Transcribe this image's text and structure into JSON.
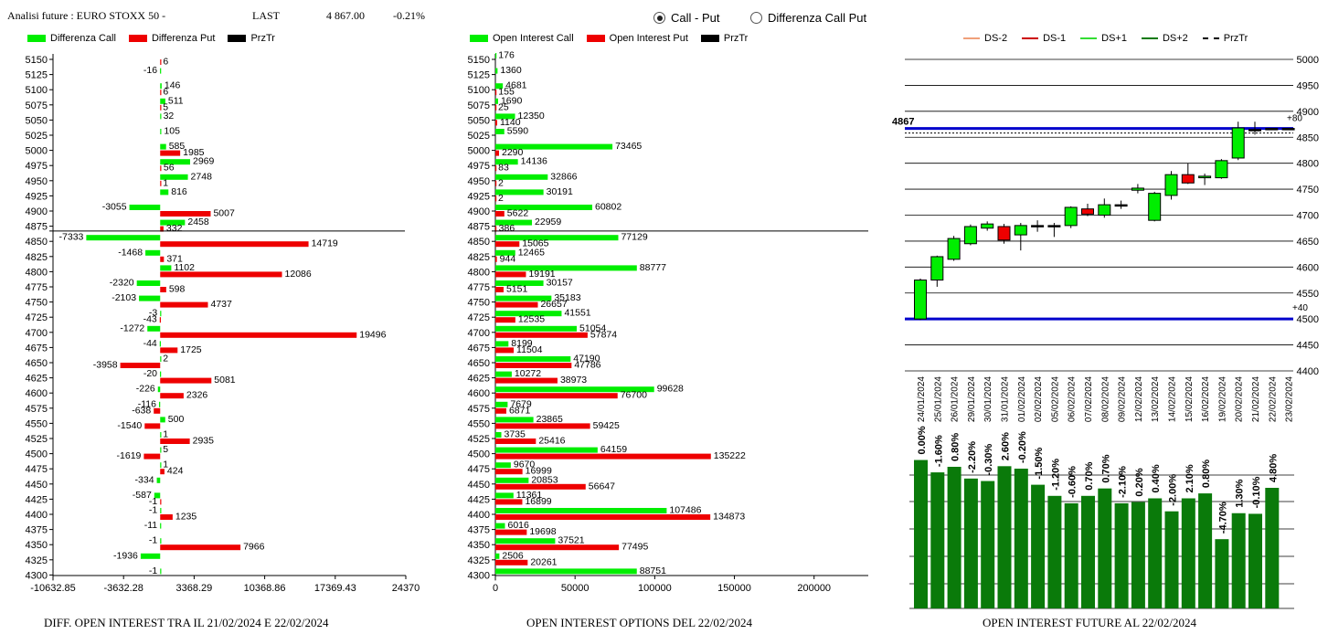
{
  "header": {
    "title": "Analisi future : EURO STOXX 50 -",
    "last_label": "LAST",
    "last_value": "4 867.00",
    "change": "-0.21%"
  },
  "radio": {
    "call_put": "Call - Put",
    "diff_call_put": "Differenza Call Put",
    "selected": "call_put"
  },
  "colors": {
    "green": "#00ee00",
    "red": "#ee0000",
    "black": "#000000",
    "blue": "#0000cc",
    "darkgreen": "#0a7a0a"
  },
  "panel1": {
    "legend": [
      "Differenza Call",
      "Differenza Put",
      "PrzTr"
    ],
    "caption": "DIFF. OPEN INTEREST TRA IL 21/02/2024 E 22/02/2024"
  },
  "panel2": {
    "legend": [
      "Open Interest Call",
      "Open Interest Put",
      "PrzTr"
    ],
    "caption": "OPEN INTEREST OPTIONS DEL 22/02/2024"
  },
  "panel3": {
    "legend": [
      "DS-2",
      "DS-1",
      "DS+1",
      "DS+2",
      "PrzTr"
    ],
    "caption": "OPEN INTEREST FUTURE AL 22/02/2024"
  },
  "chart_data": [
    {
      "type": "bar",
      "orientation": "horizontal",
      "strikes": [
        "5150",
        "5125",
        "5100",
        "5075",
        "5050",
        "5025",
        "5000",
        "4975",
        "4950",
        "4925",
        "4900",
        "4875",
        "4850",
        "4825",
        "4800",
        "4775",
        "4750",
        "4725",
        "4700",
        "4675",
        "4650",
        "4625",
        "4600",
        "4575",
        "4550",
        "4525",
        "4500",
        "4475",
        "4450",
        "4425",
        "4400",
        "4375",
        "4350",
        "4325",
        "4300"
      ],
      "series": [
        {
          "name": "Differenza Call",
          "values": [
            0,
            -16,
            146,
            511,
            32,
            105,
            585,
            2969,
            2748,
            816,
            -3055,
            2458,
            -7333,
            -1468,
            1102,
            -2320,
            -2103,
            -3,
            -1272,
            -44,
            2,
            -20,
            -226,
            -116,
            500,
            1,
            5,
            1,
            -334,
            -587,
            -1,
            -11,
            -1,
            -1936,
            -1
          ]
        },
        {
          "name": "Differenza Put",
          "values": [
            6,
            0,
            6,
            5,
            0,
            0,
            1985,
            56,
            1,
            0,
            5007,
            332,
            14719,
            371,
            12086,
            598,
            4737,
            -43,
            19496,
            1725,
            -3958,
            5081,
            2326,
            -638,
            -1540,
            2935,
            -1619,
            424,
            0,
            -1,
            1235,
            0,
            7966,
            0,
            0
          ]
        }
      ],
      "przTr": 4867,
      "xticks": [
        "-10632.85",
        "-3632.28",
        "3368.29",
        "10368.86",
        "17369.43",
        "24370"
      ],
      "xlim": [
        -10632.85,
        24370
      ]
    },
    {
      "type": "bar",
      "orientation": "horizontal",
      "strikes": [
        "5150",
        "5125",
        "5100",
        "5075",
        "5050",
        "5025",
        "5000",
        "4975",
        "4950",
        "4925",
        "4900",
        "4875",
        "4850",
        "4825",
        "4800",
        "4775",
        "4750",
        "4725",
        "4700",
        "4675",
        "4650",
        "4625",
        "4600",
        "4575",
        "4550",
        "4525",
        "4500",
        "4475",
        "4450",
        "4425",
        "4400",
        "4375",
        "4350",
        "4325",
        "4300"
      ],
      "series": [
        {
          "name": "Open Interest Call",
          "values": [
            176,
            1360,
            4681,
            1690,
            12350,
            5590,
            73465,
            14136,
            32866,
            30191,
            60802,
            22959,
            77129,
            12465,
            88777,
            30157,
            35183,
            41551,
            51054,
            8199,
            47190,
            10272,
            99628,
            7679,
            23865,
            3735,
            64159,
            9670,
            20853,
            11361,
            107486,
            6016,
            37521,
            2506,
            88751
          ]
        },
        {
          "name": "Open Interest Put",
          "values": [
            0,
            0,
            155,
            25,
            1140,
            0,
            2290,
            83,
            2,
            2,
            5622,
            386,
            15065,
            944,
            19191,
            5151,
            26657,
            12535,
            57874,
            11504,
            47786,
            38973,
            76700,
            6871,
            59425,
            25416,
            135222,
            16999,
            56647,
            16899,
            134873,
            19698,
            77495,
            20261,
            0
          ]
        }
      ],
      "przTr": 4867,
      "xticks": [
        "0",
        "50000",
        "100000",
        "150000",
        "200000"
      ],
      "xlim": [
        0,
        234000
      ]
    },
    {
      "type": "candlestick",
      "dates": [
        "24/01/2024",
        "25/01/2024",
        "26/01/2024",
        "29/01/2024",
        "30/01/2024",
        "31/01/2024",
        "01/02/2024",
        "02/02/2024",
        "05/02/2024",
        "06/02/2024",
        "07/02/2024",
        "08/02/2024",
        "09/02/2024",
        "12/02/2024",
        "13/02/2024",
        "14/02/2024",
        "15/02/2024",
        "16/02/2024",
        "19/02/2024",
        "20/02/2024",
        "21/02/2024",
        "22/02/2024",
        "23/02/2024"
      ],
      "ohlc": [
        [
          4500,
          4578,
          4498,
          4575
        ],
        [
          4575,
          4622,
          4562,
          4620
        ],
        [
          4615,
          4660,
          4612,
          4655
        ],
        [
          4645,
          4682,
          4642,
          4678
        ],
        [
          4675,
          4688,
          4670,
          4683
        ],
        [
          4678,
          4683,
          4645,
          4652
        ],
        [
          4662,
          4685,
          4632,
          4680
        ],
        [
          4680,
          4690,
          4668,
          4680
        ],
        [
          4680,
          4685,
          4658,
          4680
        ],
        [
          4680,
          4717,
          4675,
          4715
        ],
        [
          4712,
          4722,
          4698,
          4702
        ],
        [
          4700,
          4732,
          4695,
          4720
        ],
        [
          4720,
          4728,
          4712,
          4720
        ],
        [
          4748,
          4760,
          4742,
          4752
        ],
        [
          4690,
          4745,
          4688,
          4742
        ],
        [
          4738,
          4785,
          4730,
          4778
        ],
        [
          4778,
          4800,
          4760,
          4762
        ],
        [
          4772,
          4780,
          4758,
          4775
        ],
        [
          4772,
          4808,
          4770,
          4805
        ],
        [
          4810,
          4880,
          4806,
          4868
        ],
        [
          4865,
          4880,
          4855,
          4865
        ],
        [
          4867,
          4867,
          4867,
          4867
        ],
        [
          4867,
          4867,
          4867,
          4867
        ]
      ],
      "yticks": [
        4400,
        4450,
        4500,
        4550,
        4600,
        4650,
        4700,
        4750,
        4800,
        4850,
        4900,
        4950,
        5000
      ],
      "ylim": [
        4400,
        5000
      ],
      "level_upper": 4867,
      "level_lower": 4500,
      "label_upper": "+80",
      "label_lower": "+40",
      "przTr_label": "4867"
    },
    {
      "type": "bar",
      "values": [
        2400,
        2200,
        2290,
        2100,
        2060,
        2300,
        2260,
        2000,
        1820,
        1700,
        1820,
        1940,
        1700,
        1720,
        1780,
        1570,
        1780,
        1860,
        1120,
        1540,
        1530,
        1950
      ],
      "labels": [
        "0.00%",
        "-1.60%",
        "0.80%",
        "-2.20%",
        "-0.30%",
        "2.60%",
        "-0.20%",
        "-1.50%",
        "-1.20%",
        "-0.60%",
        "0.70%",
        "0.70%",
        "-2.10%",
        "0.20%",
        "0.40%",
        "-2.00%",
        "2.10%",
        "0.80%",
        "-4.70%",
        "1.30%",
        "-0.10%",
        "4.80%"
      ]
    }
  ]
}
